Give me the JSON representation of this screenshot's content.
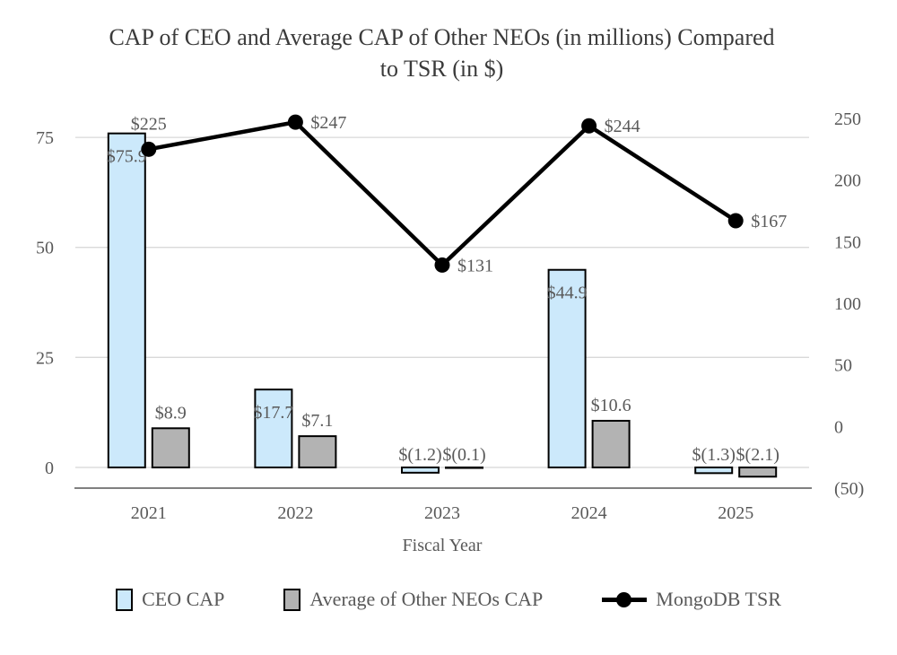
{
  "chart": {
    "title_line1": "CAP of CEO and Average CAP of Other NEOs (in millions) Compared",
    "title_line2": "to TSR (in $)"
  },
  "legend": {
    "items": [
      {
        "label": "CEO CAP",
        "marker": "square",
        "color": "#cce9fb"
      },
      {
        "label": "Average of Other NEOs CAP",
        "marker": "square",
        "color": "#b3b3b3"
      },
      {
        "label": "MongoDB TSR",
        "marker": "line-dot",
        "color": "#000000"
      }
    ]
  },
  "chart_data": {
    "type": "bar",
    "title": "CAP of CEO and Average CAP of Other NEOs (in millions) Compared to TSR (in $)",
    "xlabel": "Fiscal Year",
    "categories": [
      "2021",
      "2022",
      "2023",
      "2024",
      "2025"
    ],
    "series": [
      {
        "name": "CEO CAP",
        "type": "bar",
        "axis": "left",
        "color": "#cce9fb",
        "values": [
          75.9,
          17.7,
          -1.2,
          44.9,
          -1.3
        ],
        "labels": [
          "$75.9",
          "$17.7",
          "$(1.2)",
          "$44.9",
          "$(1.3)"
        ]
      },
      {
        "name": "Average of Other NEOs CAP",
        "type": "bar",
        "axis": "left",
        "color": "#b3b3b3",
        "values": [
          8.9,
          7.1,
          -0.1,
          10.6,
          -2.1
        ],
        "labels": [
          "$8.9",
          "$7.1",
          "$(0.1)",
          "$10.6",
          "$(2.1)"
        ]
      },
      {
        "name": "MongoDB TSR",
        "type": "line",
        "axis": "right",
        "color": "#000000",
        "values": [
          225,
          247,
          131,
          244,
          167
        ],
        "labels": [
          "$225",
          "$247",
          "$131",
          "$244",
          "$167"
        ]
      }
    ],
    "left_axis": {
      "min": -4.7,
      "max": 79.3,
      "ticks": [
        0,
        25,
        50,
        75
      ],
      "tick_labels": [
        "0",
        "25",
        "50",
        "75"
      ]
    },
    "right_axis": {
      "min": -50,
      "max": 250,
      "ticks": [
        -50,
        0,
        50,
        100,
        150,
        200,
        250
      ],
      "tick_labels": [
        "(50)",
        "0",
        "50",
        "100",
        "150",
        "200",
        "250"
      ]
    },
    "grid": true,
    "legend_position": "bottom",
    "colors": {
      "gridline": "#d9d9d9",
      "axis_line": "#808080",
      "label_text": "#595959",
      "title_text": "#3b3b3b",
      "bar_border": "#000000"
    }
  }
}
